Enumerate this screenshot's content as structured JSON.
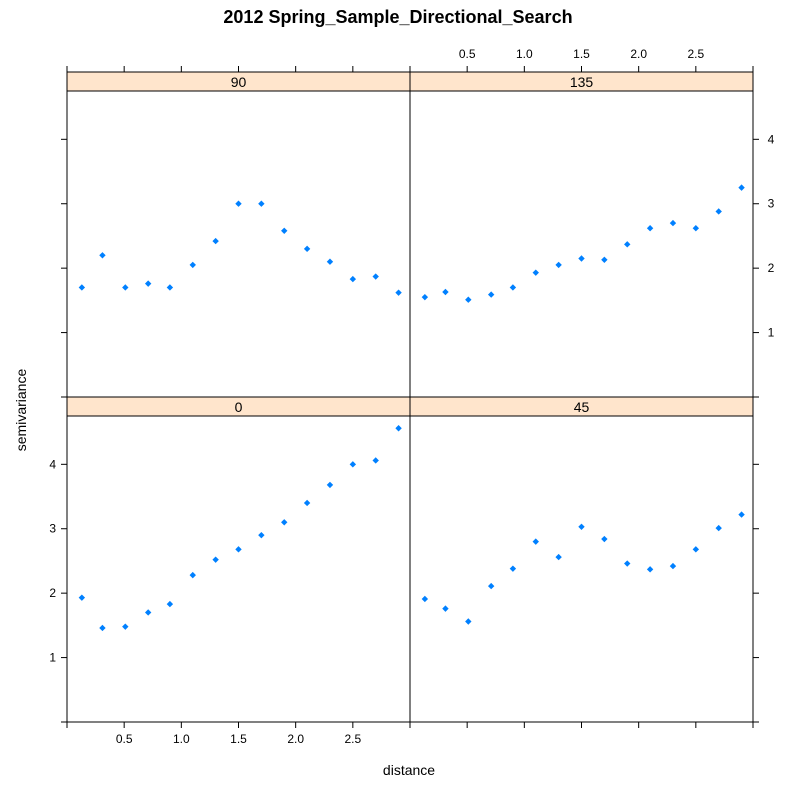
{
  "chart_data": {
    "type": "scatter",
    "title": "2012 Spring_Sample_Directional_Search",
    "xlabel": "distance",
    "ylabel": "semivariance",
    "xlim": [
      0,
      3.0
    ],
    "ylim": [
      0,
      4.75
    ],
    "x_ticks": [
      0.5,
      1.0,
      1.5,
      2.0,
      2.5
    ],
    "x_tick_labels": [
      "0.5",
      "1.0",
      "1.5",
      "2.0",
      "2.5"
    ],
    "y_ticks": [
      1,
      2,
      3,
      4
    ],
    "y_tick_labels": [
      "1",
      "2",
      "3",
      "4"
    ],
    "point_color": "#0080ff",
    "strip_color": "#ffe5cc",
    "panels": [
      {
        "label": "90",
        "x": [
          0.13,
          0.31,
          0.51,
          0.71,
          0.9,
          1.1,
          1.3,
          1.5,
          1.7,
          1.9,
          2.1,
          2.3,
          2.5,
          2.7,
          2.9
        ],
        "y": [
          1.7,
          2.2,
          1.7,
          1.76,
          1.7,
          2.05,
          2.42,
          3.0,
          3.0,
          2.58,
          2.3,
          2.1,
          1.83,
          1.87,
          1.62
        ]
      },
      {
        "label": "135",
        "x": [
          0.13,
          0.31,
          0.51,
          0.71,
          0.9,
          1.1,
          1.3,
          1.5,
          1.7,
          1.9,
          2.1,
          2.3,
          2.5,
          2.7,
          2.9
        ],
        "y": [
          1.55,
          1.63,
          1.51,
          1.59,
          1.7,
          1.93,
          2.05,
          2.15,
          2.13,
          2.37,
          2.62,
          2.7,
          2.62,
          2.88,
          3.25
        ]
      },
      {
        "label": "0",
        "x": [
          0.13,
          0.31,
          0.51,
          0.71,
          0.9,
          1.1,
          1.3,
          1.5,
          1.7,
          1.9,
          2.1,
          2.3,
          2.5,
          2.7,
          2.9
        ],
        "y": [
          1.93,
          1.46,
          1.48,
          1.7,
          1.83,
          2.28,
          2.52,
          2.68,
          2.9,
          3.1,
          3.4,
          3.68,
          4.0,
          4.06,
          4.56
        ]
      },
      {
        "label": "45",
        "x": [
          0.13,
          0.31,
          0.51,
          0.71,
          0.9,
          1.1,
          1.3,
          1.5,
          1.7,
          1.9,
          2.1,
          2.3,
          2.5,
          2.7,
          2.9
        ],
        "y": [
          1.91,
          1.76,
          1.56,
          2.11,
          2.38,
          2.8,
          2.56,
          3.03,
          2.84,
          2.46,
          2.37,
          2.42,
          2.68,
          3.01,
          3.22
        ]
      }
    ]
  }
}
